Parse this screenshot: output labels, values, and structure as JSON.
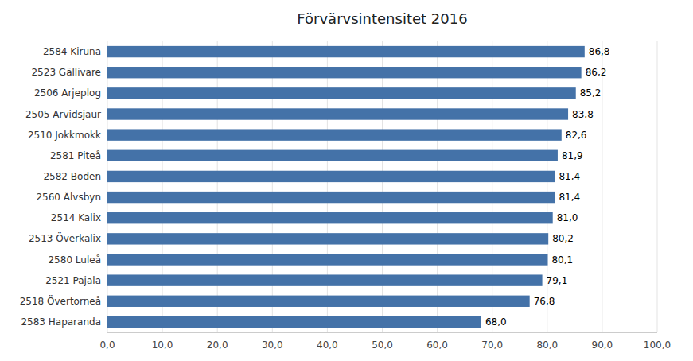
{
  "chart_data": {
    "type": "bar",
    "orientation": "horizontal",
    "title": "Förvärvsintensitet 2016",
    "categories": [
      "2583 Haparanda",
      "2518 Övertorneå",
      "2521 Pajala",
      "2580 Luleå",
      "2513 Överkalix",
      "2514 Kalix",
      "2560 Älvsbyn",
      "2582 Boden",
      "2581 Piteå",
      "2510 Jokkmokk",
      "2505 Arvidsjaur",
      "2506 Arjeplog",
      "2523 Gällivare",
      "2584 Kiruna"
    ],
    "values": [
      68.0,
      76.8,
      79.1,
      80.1,
      80.2,
      81.0,
      81.4,
      81.4,
      81.9,
      82.6,
      83.8,
      85.2,
      86.2,
      86.8
    ],
    "value_labels": [
      "68,0",
      "76,8",
      "79,1",
      "80,1",
      "80,2",
      "81,0",
      "81,4",
      "81,4",
      "81,9",
      "82,6",
      "83,8",
      "85,2",
      "86,2",
      "86,8"
    ],
    "data_labels": true,
    "color": "#4472a8",
    "xlim": [
      0,
      100
    ],
    "xticks": [
      {
        "value": 0,
        "label": "0,0"
      },
      {
        "value": 10,
        "label": "10,0"
      },
      {
        "value": 20,
        "label": "20,0"
      },
      {
        "value": 30,
        "label": "30,0"
      },
      {
        "value": 40,
        "label": "40,0"
      },
      {
        "value": 50,
        "label": "50,0"
      },
      {
        "value": 60,
        "label": "60,0"
      },
      {
        "value": 70,
        "label": "70,0"
      },
      {
        "value": 80,
        "label": "80,0"
      },
      {
        "value": 90,
        "label": "90,0"
      },
      {
        "value": 100,
        "label": "100,0"
      }
    ],
    "grid": true
  }
}
